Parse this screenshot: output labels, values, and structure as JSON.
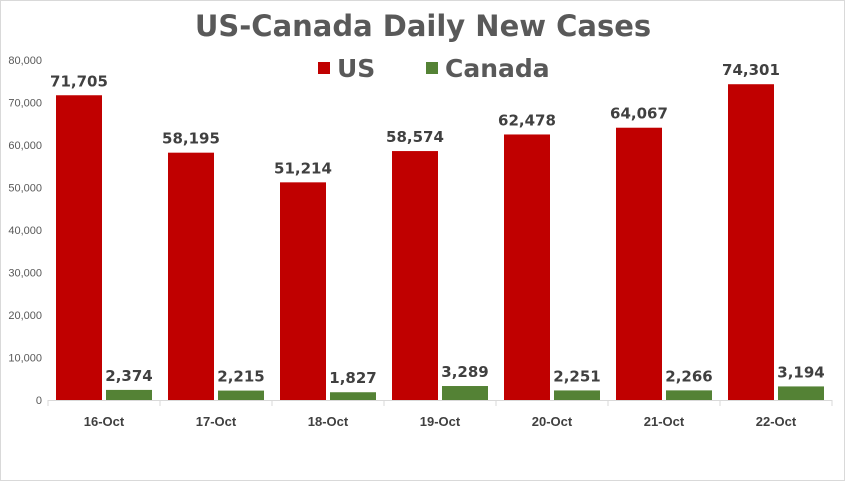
{
  "chart_data": {
    "type": "bar",
    "title": "US-Canada Daily New Cases",
    "categories": [
      "16-Oct",
      "17-Oct",
      "18-Oct",
      "19-Oct",
      "20-Oct",
      "21-Oct",
      "22-Oct"
    ],
    "series": [
      {
        "name": "US",
        "color": "#c00000",
        "values": [
          71705,
          58195,
          51214,
          58574,
          62478,
          64067,
          74301
        ],
        "labels": [
          "71,705",
          "58,195",
          "51,214",
          "58,574",
          "62,478",
          "64,067",
          "74,301"
        ]
      },
      {
        "name": "Canada",
        "color": "#548235",
        "values": [
          2374,
          2215,
          1827,
          3289,
          2251,
          2266,
          3194
        ],
        "labels": [
          "2,374",
          "2,215",
          "1,827",
          "3,289",
          "2,251",
          "2,266",
          "3,194"
        ]
      }
    ],
    "ylim": [
      0,
      80000
    ],
    "yticks": [
      "0",
      "10,000",
      "20,000",
      "30,000",
      "40,000",
      "50,000",
      "60,000",
      "70,000",
      "80,000"
    ],
    "ytick_values": [
      0,
      10000,
      20000,
      30000,
      40000,
      50000,
      60000,
      70000,
      80000
    ],
    "xlabel": "",
    "ylabel": "",
    "grid": false,
    "legend_position": "top-center"
  }
}
